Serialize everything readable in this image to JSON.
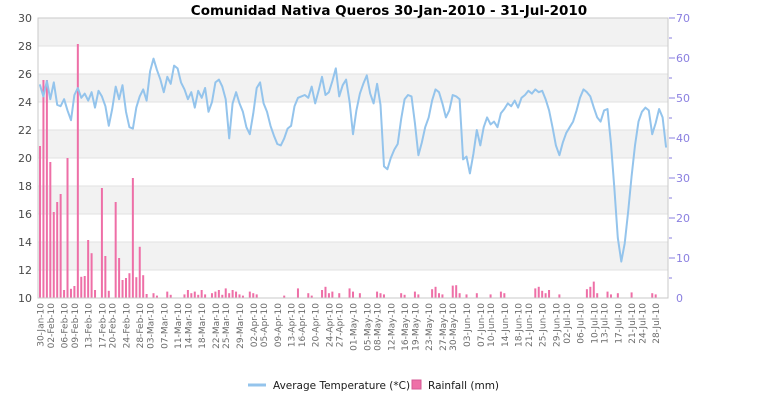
{
  "title": "Comunidad Nativa Queros  30-Jan-2010 - 31-Jul-2010",
  "legend": {
    "temperature": {
      "label": "Average Temperature (*C)",
      "marker": "line-dash",
      "color": "#94c4ec"
    },
    "rainfall": {
      "label": "Rainfall (mm)",
      "marker": "square",
      "color": "#ee6fa7"
    }
  },
  "colors": {
    "temp_line": "#94c4ec",
    "rain_bar": "#ee6fa7",
    "rain_bar_border": "#d55a94",
    "right_axis_text": "#8a7fe0",
    "left_axis_text": "#4a4a4a",
    "x_axis_text": "#6b6b6b",
    "band_gray": "#f2f2f2",
    "band_white": "#ffffff",
    "gridline": "#e2e2e2",
    "plot_border": "#c9c9c9"
  },
  "chart_data": {
    "type": "line+bar",
    "title": "Comunidad Nativa Queros  30-Jan-2010 - 31-Jul-2010",
    "x_start_date": "30-Jan-2010",
    "x_end_date": "31-Jul-2010",
    "x_days_total": 183,
    "grid": "horizontal-bands",
    "legend_position": "bottom-center",
    "left_axis": {
      "series": "Average Temperature (*C)",
      "min": 10,
      "max": 30,
      "step": 2
    },
    "right_axis": {
      "series": "Rainfall (mm)",
      "min": 0,
      "max": 70,
      "step": 10,
      "minor_step": 5
    },
    "x_tick_labels": [
      "30-Jan-10",
      "02-Feb-10",
      "06-Feb-10",
      "09-Feb-10",
      "13-Feb-10",
      "17-Feb-10",
      "20-Feb-10",
      "24-Feb-10",
      "28-Feb-10",
      "03-Mar-10",
      "07-Mar-10",
      "11-Mar-10",
      "14-Mar-10",
      "18-Mar-10",
      "22-Mar-10",
      "25-Mar-10",
      "29-Mar-10",
      "02-Apr-10",
      "05-Apr-10",
      "09-Apr-10",
      "13-Apr-10",
      "16-Apr-10",
      "20-Apr-10",
      "24-Apr-10",
      "27-Apr-10",
      "01-May-10",
      "05-May-10",
      "08-May-10",
      "12-May-10",
      "16-May-10",
      "19-May-10",
      "23-May-10",
      "27-May-10",
      "30-May-10",
      "03-Jun-10",
      "07-Jun-10",
      "10-Jun-10",
      "14-Jun-10",
      "18-Jun-10",
      "21-Jun-10",
      "25-Jun-10",
      "29-Jun-10",
      "02-Jul-10",
      "06-Jul-10",
      "10-Jul-10",
      "13-Jul-10",
      "17-Jul-10",
      "21-Jul-10",
      "24-Jul-10",
      "28-Jul-10"
    ],
    "x_tick_days": [
      0,
      3,
      7,
      10,
      14,
      18,
      21,
      25,
      29,
      32,
      36,
      40,
      43,
      47,
      51,
      54,
      58,
      62,
      65,
      69,
      73,
      76,
      80,
      84,
      87,
      91,
      95,
      98,
      102,
      106,
      109,
      113,
      117,
      120,
      124,
      128,
      131,
      135,
      139,
      142,
      146,
      150,
      153,
      157,
      161,
      164,
      168,
      172,
      175,
      179
    ],
    "series": [
      {
        "name": "Average Temperature (*C)",
        "type": "line",
        "axis": "left",
        "color": "#94c4ec",
        "values": [
          25.2,
          24.4,
          25.5,
          24.2,
          25.4,
          23.8,
          23.7,
          24.2,
          23.4,
          22.7,
          24.5,
          25.0,
          24.3,
          24.6,
          24.1,
          24.7,
          23.6,
          24.8,
          24.4,
          23.7,
          22.3,
          23.5,
          25.1,
          24.2,
          25.2,
          23.3,
          22.2,
          22.1,
          23.6,
          24.4,
          24.9,
          24.1,
          26.2,
          27.1,
          26.3,
          25.6,
          24.7,
          25.8,
          25.3,
          26.6,
          26.4,
          25.4,
          24.9,
          24.2,
          24.7,
          23.6,
          24.8,
          24.3,
          25.0,
          23.3,
          24.0,
          25.4,
          25.6,
          25.1,
          24.2,
          21.4,
          23.9,
          24.7,
          23.9,
          23.3,
          22.2,
          21.7,
          23.2,
          25.0,
          25.4,
          23.9,
          23.3,
          22.3,
          21.6,
          21.0,
          20.9,
          21.4,
          22.1,
          22.3,
          23.7,
          24.3,
          24.4,
          24.5,
          24.3,
          25.1,
          23.9,
          24.8,
          25.8,
          24.5,
          24.7,
          25.5,
          26.4,
          24.4,
          25.2,
          25.6,
          24.0,
          21.7,
          23.4,
          24.6,
          25.3,
          25.9,
          24.6,
          23.9,
          25.3,
          23.8,
          19.4,
          19.2,
          20.0,
          20.6,
          21.0,
          22.8,
          24.2,
          24.5,
          24.4,
          22.5,
          20.2,
          21.1,
          22.2,
          22.9,
          24.1,
          24.9,
          24.7,
          23.9,
          22.9,
          23.4,
          24.5,
          24.4,
          24.2,
          19.9,
          20.1,
          18.9,
          20.3,
          22.0,
          20.9,
          22.2,
          22.9,
          22.4,
          22.6,
          22.2,
          23.2,
          23.5,
          23.9,
          23.7,
          24.1,
          23.6,
          24.3,
          24.5,
          24.8,
          24.6,
          24.9,
          24.7,
          24.8,
          24.2,
          23.4,
          22.2,
          20.9,
          20.2,
          21.1,
          21.8,
          22.2,
          22.6,
          23.4,
          24.3,
          24.9,
          24.7,
          24.4,
          23.6,
          22.9,
          22.6,
          23.4,
          23.5,
          21.0,
          17.8,
          14.3,
          12.6,
          13.9,
          16.2,
          18.7,
          20.9,
          22.6,
          23.3,
          23.6,
          23.4,
          21.7,
          22.5,
          23.5,
          22.9,
          20.8
        ]
      },
      {
        "name": "Rainfall (mm)",
        "type": "bar",
        "axis": "right",
        "color": "#ee6fa7",
        "values": [
          38,
          54.5,
          54.5,
          34,
          21.5,
          24,
          26,
          2,
          35,
          2.3,
          3,
          63.5,
          5.3,
          5.5,
          14.5,
          11.2,
          2,
          0,
          27.5,
          10.5,
          1.8,
          0,
          24,
          10,
          4.5,
          5,
          6.2,
          30,
          5.2,
          12.8,
          5.7,
          1,
          0,
          1.2,
          0.6,
          0,
          0,
          1.6,
          0.8,
          0,
          0,
          0,
          0.9,
          2,
          1.2,
          1.6,
          0.8,
          2,
          0.9,
          0,
          1.2,
          1.6,
          2,
          0.8,
          2.4,
          1.2,
          2,
          1.6,
          0.9,
          0.6,
          0,
          1.6,
          1.2,
          0.9,
          0,
          0,
          0,
          0,
          0,
          0,
          0,
          0.6,
          0,
          0,
          0,
          2.4,
          0,
          0,
          1.2,
          0.6,
          0,
          0,
          2,
          2.8,
          1.2,
          1.6,
          0,
          1.2,
          0,
          0,
          2.4,
          1.6,
          0,
          1.2,
          0,
          0,
          0,
          0,
          1.6,
          1.2,
          0.9,
          0,
          0,
          0,
          0,
          1.2,
          0.8,
          0,
          0,
          1.6,
          0.9,
          0,
          0,
          0,
          2.2,
          2.8,
          1.2,
          0.9,
          0,
          0,
          3.1,
          3.2,
          1.2,
          0,
          0.9,
          0,
          0,
          1.2,
          0,
          0,
          0,
          0.9,
          0,
          0,
          1.6,
          1.2,
          0,
          0,
          0,
          0,
          0,
          0,
          0,
          0,
          2.4,
          2.8,
          1.8,
          1.2,
          2,
          0,
          0,
          0.9,
          0,
          0,
          0,
          0,
          0,
          0,
          0,
          2.2,
          2.8,
          4.1,
          1.2,
          0,
          0,
          1.6,
          0.9,
          0,
          1.2,
          0,
          0,
          0,
          1.4,
          0,
          0,
          0,
          0,
          0,
          1.2,
          0.9,
          0,
          0,
          0
        ]
      }
    ]
  }
}
